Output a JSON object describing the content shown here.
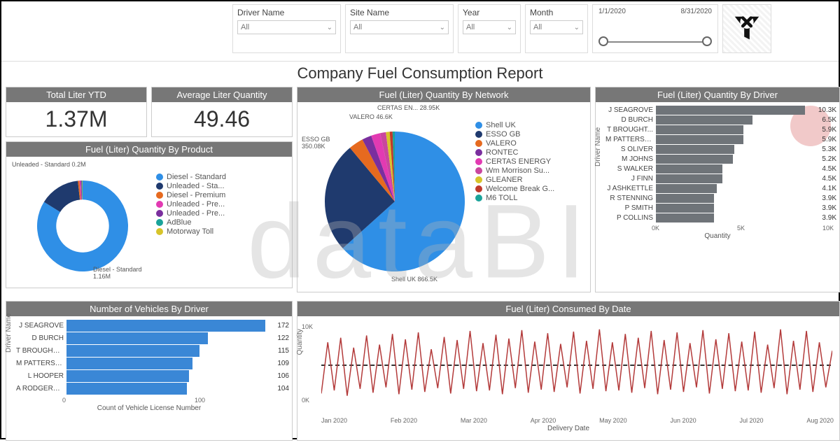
{
  "filters": {
    "driver": {
      "label": "Driver Name",
      "value": "All"
    },
    "site": {
      "label": "Site Name",
      "value": "All"
    },
    "year": {
      "label": "Year",
      "value": "All"
    },
    "month": {
      "label": "Month",
      "value": "All"
    },
    "date_from": "1/1/2020",
    "date_to": "8/31/2020"
  },
  "title": "Company Fuel Consumption Report",
  "kpi": {
    "total_ytd": {
      "title": "Total Liter YTD",
      "value": "1.37M"
    },
    "avg_qty": {
      "title": "Average Liter Quantity",
      "value": "49.46"
    }
  },
  "by_product": {
    "header": "Fuel (Liter) Quantity By Product",
    "type": "donut",
    "inner_radius": 0.58,
    "callouts": [
      {
        "text": "Unleaded - Standard 0.2M",
        "angle_start": 300
      },
      {
        "text": "Diesel - Standard 1.16M",
        "angle_start": 120
      }
    ],
    "series": [
      {
        "label": "Diesel - Standard",
        "value": 1160000,
        "color": "#2f8fe6"
      },
      {
        "label": "Unleaded - Sta...",
        "value": 200000,
        "color": "#1f3a6e"
      },
      {
        "label": "Diesel - Premium",
        "value": 8000,
        "color": "#e66a1f"
      },
      {
        "label": "Unleaded - Pre...",
        "value": 6000,
        "color": "#e23ab2"
      },
      {
        "label": "Unleaded - Pre...",
        "value": 4000,
        "color": "#7a2f9e"
      },
      {
        "label": "AdBlue",
        "value": 3000,
        "color": "#1aa39a"
      },
      {
        "label": "Motorway Toll",
        "value": 2000,
        "color": "#d7c42a"
      }
    ]
  },
  "by_network": {
    "header": "Fuel (Liter) Quantity By Network",
    "type": "pie",
    "callouts": [
      {
        "text": "CERTAS EN... 28.95K"
      },
      {
        "text": "VALERO 46.6K"
      },
      {
        "text": "ESSO GB 350.08K"
      },
      {
        "text": "Shell UK 866.5K"
      }
    ],
    "series": [
      {
        "label": "Shell UK",
        "value": 866500,
        "color": "#2f8fe6"
      },
      {
        "label": "ESSO GB",
        "value": 350080,
        "color": "#1f3a6e"
      },
      {
        "label": "VALERO",
        "value": 46600,
        "color": "#e66a1f"
      },
      {
        "label": "RONTEC",
        "value": 30000,
        "color": "#7a2f9e"
      },
      {
        "label": "CERTAS ENERGY",
        "value": 28950,
        "color": "#e23ab2"
      },
      {
        "label": "Wm Morrison Su...",
        "value": 18000,
        "color": "#c9469e"
      },
      {
        "label": "GLEANER",
        "value": 12000,
        "color": "#d7c42a"
      },
      {
        "label": "Welcome Break G...",
        "value": 9000,
        "color": "#c0392b"
      },
      {
        "label": "M6 TOLL",
        "value": 7000,
        "color": "#1aa39a"
      }
    ]
  },
  "by_driver": {
    "header": "Fuel (Liter) Quantity By Driver",
    "type": "bar",
    "y_axis_label": "Driver Name",
    "x_axis_label": "Quantity",
    "x_ticks": [
      "0K",
      "5K",
      "10K"
    ],
    "xlim": 11000,
    "bar_color": "#6f7479",
    "rows": [
      {
        "label": "J SEAGROVE",
        "value": 10300,
        "text": "10.3K"
      },
      {
        "label": "D BURCH",
        "value": 6500,
        "text": "6.5K"
      },
      {
        "label": "T BROUGHT...",
        "value": 5900,
        "text": "5.9K"
      },
      {
        "label": "M PATTERSON",
        "value": 5900,
        "text": "5.9K"
      },
      {
        "label": "S OLIVER",
        "value": 5300,
        "text": "5.3K"
      },
      {
        "label": "M JOHNS",
        "value": 5200,
        "text": "5.2K"
      },
      {
        "label": "S WALKER",
        "value": 4500,
        "text": "4.5K"
      },
      {
        "label": "J FINN",
        "value": 4500,
        "text": "4.5K"
      },
      {
        "label": "J ASHKETTLE",
        "value": 4100,
        "text": "4.1K"
      },
      {
        "label": "R STENNING",
        "value": 3900,
        "text": "3.9K"
      },
      {
        "label": "P SMITH",
        "value": 3900,
        "text": "3.9K"
      },
      {
        "label": "P COLLINS",
        "value": 3900,
        "text": "3.9K"
      }
    ]
  },
  "vehicles_by_driver": {
    "header": "Number of Vehicles By Driver",
    "type": "bar",
    "y_axis_label": "Driver Name",
    "x_axis_label": "Count of Vehicle License Number",
    "x_ticks": [
      "0",
      "100"
    ],
    "xlim": 180,
    "bar_color": "#3a87d6",
    "rows": [
      {
        "label": "J SEAGROVE",
        "value": 172,
        "text": "172"
      },
      {
        "label": "D BURCH",
        "value": 122,
        "text": "122"
      },
      {
        "label": "T BROUGHTON",
        "value": 115,
        "text": "115"
      },
      {
        "label": "M PATTERSON",
        "value": 109,
        "text": "109"
      },
      {
        "label": "L HOOPER",
        "value": 106,
        "text": "106"
      },
      {
        "label": "A RODGERSON",
        "value": 104,
        "text": "104"
      }
    ]
  },
  "by_date": {
    "header": "Fuel (Liter) Consumed By Date",
    "type": "line",
    "y_axis_label": "Quantity",
    "x_axis_label": "Delivery Date",
    "y_ticks": [
      "10K",
      "0K"
    ],
    "ylim": [
      0,
      11000
    ],
    "avg_value": 5600,
    "line_color": "#b33a3a",
    "line_width": 1.5,
    "x_ticks": [
      "Jan 2020",
      "Feb 2020",
      "Mar 2020",
      "Apr 2020",
      "May 2020",
      "Jun 2020",
      "Jul 2020",
      "Aug 2020"
    ],
    "values": [
      1800,
      8500,
      2200,
      9100,
      1500,
      7800,
      2400,
      9400,
      1900,
      8200,
      2600,
      9600,
      1700,
      8900,
      2300,
      9800,
      2000,
      7600,
      2500,
      9200,
      1800,
      8800,
      2400,
      10000,
      2100,
      8400,
      2200,
      9500,
      1700,
      9000,
      2500,
      10100,
      1900,
      8600,
      2300,
      9700,
      2000,
      8300,
      2600,
      9900,
      1800,
      8700,
      2400,
      10200,
      2100,
      8500,
      2200,
      9600,
      1900,
      9100,
      2500,
      10000,
      1700,
      8800,
      2300,
      9800,
      2000,
      8400,
      2600,
      10100,
      1800,
      8900,
      2400,
      9700,
      2100,
      8600,
      2200,
      9900,
      1900,
      8200,
      2500,
      10200,
      1700,
      8700,
      2300,
      10000,
      2000,
      8500,
      2600,
      7400
    ]
  },
  "watermark": "dataBI",
  "colors": {
    "panel_header_bg": "#777777",
    "panel_header_fg": "#ffffff",
    "grid_border": "#cccccc",
    "highlight_circle": "#e28a8a"
  }
}
